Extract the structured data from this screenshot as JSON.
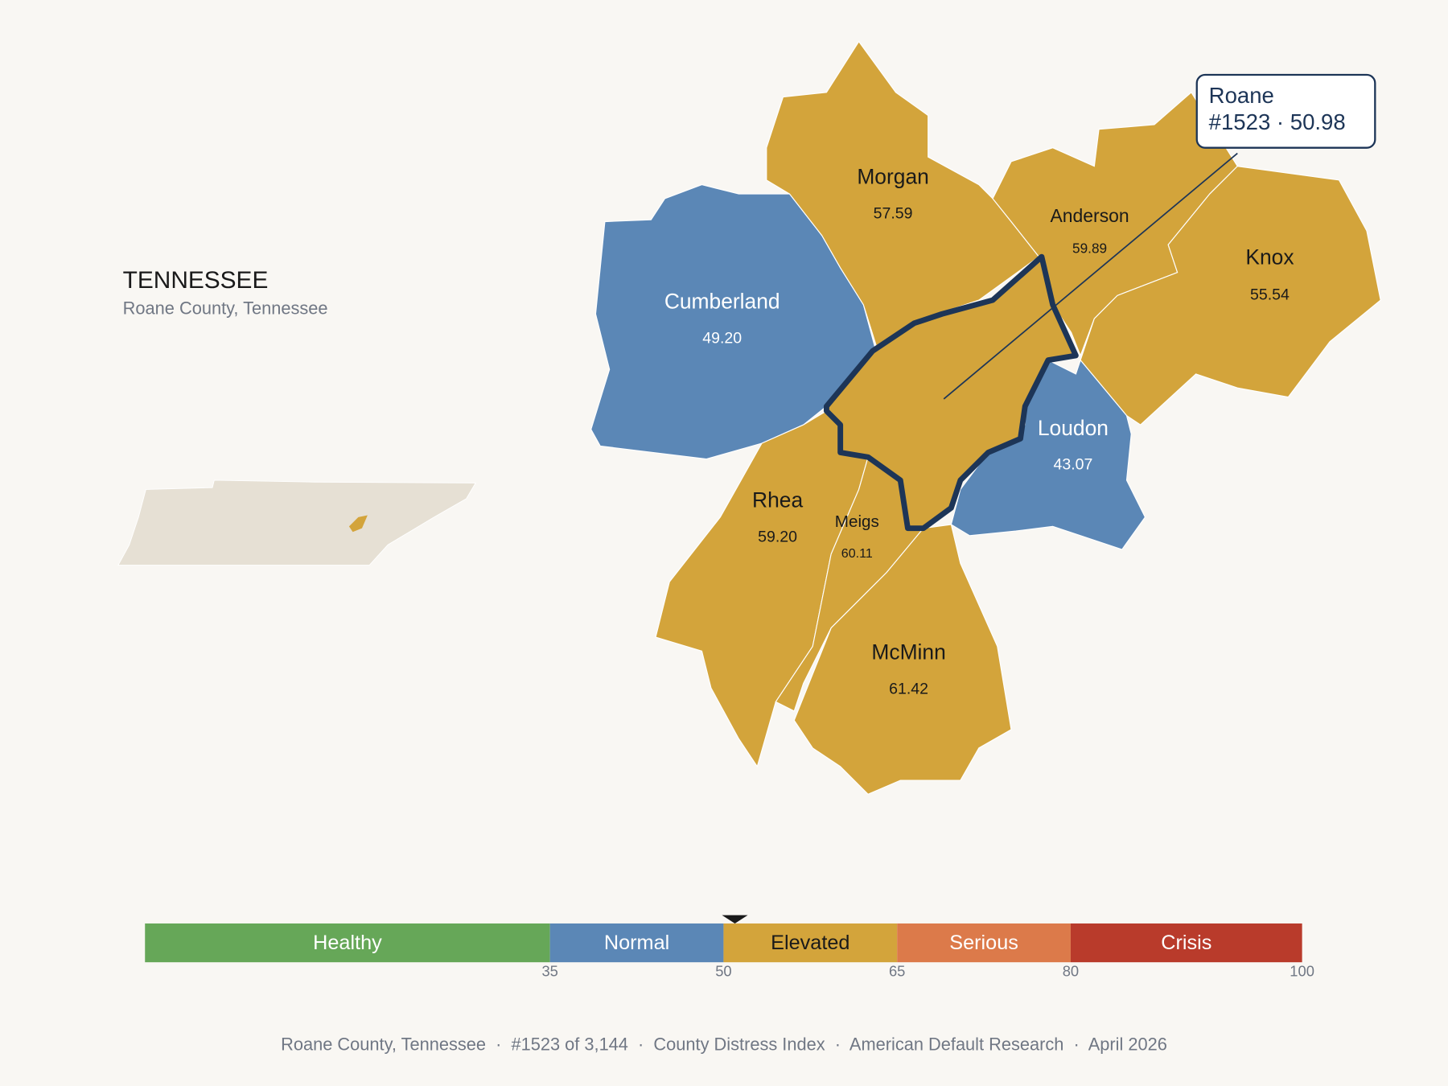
{
  "header": {
    "title": "TENNESSEE",
    "subtitle": "Roane County, Tennessee"
  },
  "callout": {
    "name": "Roane",
    "detail": "#1523 · 50.98"
  },
  "counties": [
    {
      "name": "Cumberland",
      "value": "49.20",
      "color": "#5b87b6"
    },
    {
      "name": "Morgan",
      "value": "57.59",
      "color": "#d3a43b"
    },
    {
      "name": "Anderson",
      "value": "59.89",
      "color": "#d3a43b"
    },
    {
      "name": "Knox",
      "value": "55.54",
      "color": "#d3a43b"
    },
    {
      "name": "Loudon",
      "value": "43.07",
      "color": "#5b87b6"
    },
    {
      "name": "Rhea",
      "value": "59.20",
      "color": "#d3a43b"
    },
    {
      "name": "Meigs",
      "value": "60.11",
      "color": "#d3a43b"
    },
    {
      "name": "McMinn",
      "value": "61.42",
      "color": "#d3a43b"
    },
    {
      "name": null,
      "value": null,
      "color": "#d3a43b"
    }
  ],
  "scale": {
    "range": [
      0,
      100
    ],
    "ticks": [
      35,
      50,
      65,
      80,
      100
    ],
    "segments": [
      {
        "label": "Healthy",
        "color": "#66a758"
      },
      {
        "label": "Normal",
        "color": "#5b87b6"
      },
      {
        "label": "Elevated",
        "color": "#d3a43b"
      },
      {
        "label": "Serious",
        "color": "#dc7a4a"
      },
      {
        "label": "Crisis",
        "color": "#b93b2b"
      }
    ],
    "marker": 50.98
  },
  "footer": "Roane County, Tennessee  ·  #1523 of 3,144  ·  County Distress Index  ·  American Default Research  ·  April 2026"
}
